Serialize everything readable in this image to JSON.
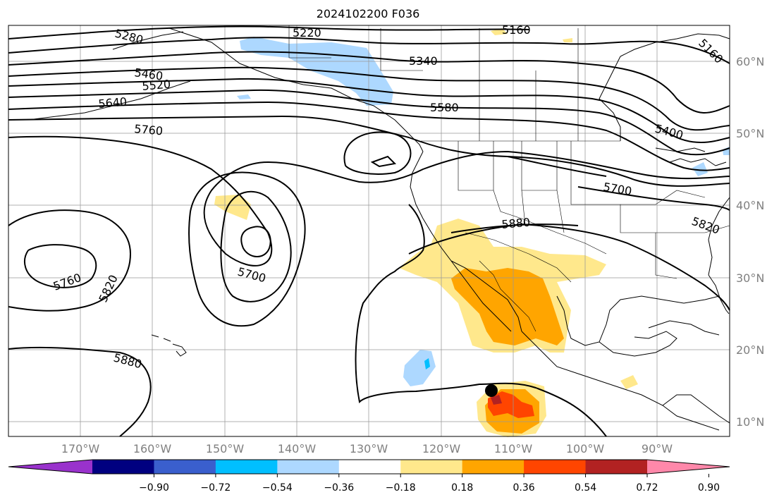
{
  "title": "2024102200 F036",
  "lat_labels": [
    "60°N",
    "50°N",
    "40°N",
    "30°N",
    "20°N",
    "10°N"
  ],
  "lon_labels": [
    "170°W",
    "160°W",
    "150°W",
    "140°W",
    "130°W",
    "120°W",
    "110°W",
    "100°W",
    "90°W"
  ],
  "colorbar": {
    "colors": [
      "#9932cc",
      "#000080",
      "#3a5fcd",
      "#00bfff",
      "#add8ff",
      "#ffffff",
      "#ffe88c",
      "#ffa500",
      "#ff4500",
      "#b22222",
      "#ff88aa"
    ],
    "tick_labels": [
      "−0.90",
      "−0.72",
      "−0.54",
      "−0.36",
      "−0.18",
      "0.18",
      "0.36",
      "0.54",
      "0.72",
      "0.90"
    ]
  },
  "contour_labels": [
    "5220",
    "5160",
    "5280",
    "5340",
    "5460",
    "5520",
    "5580",
    "5640",
    "5760",
    "5400",
    "5700",
    "5880",
    "5820",
    "5700",
    "5760",
    "5820",
    "5880",
    "5160"
  ]
}
